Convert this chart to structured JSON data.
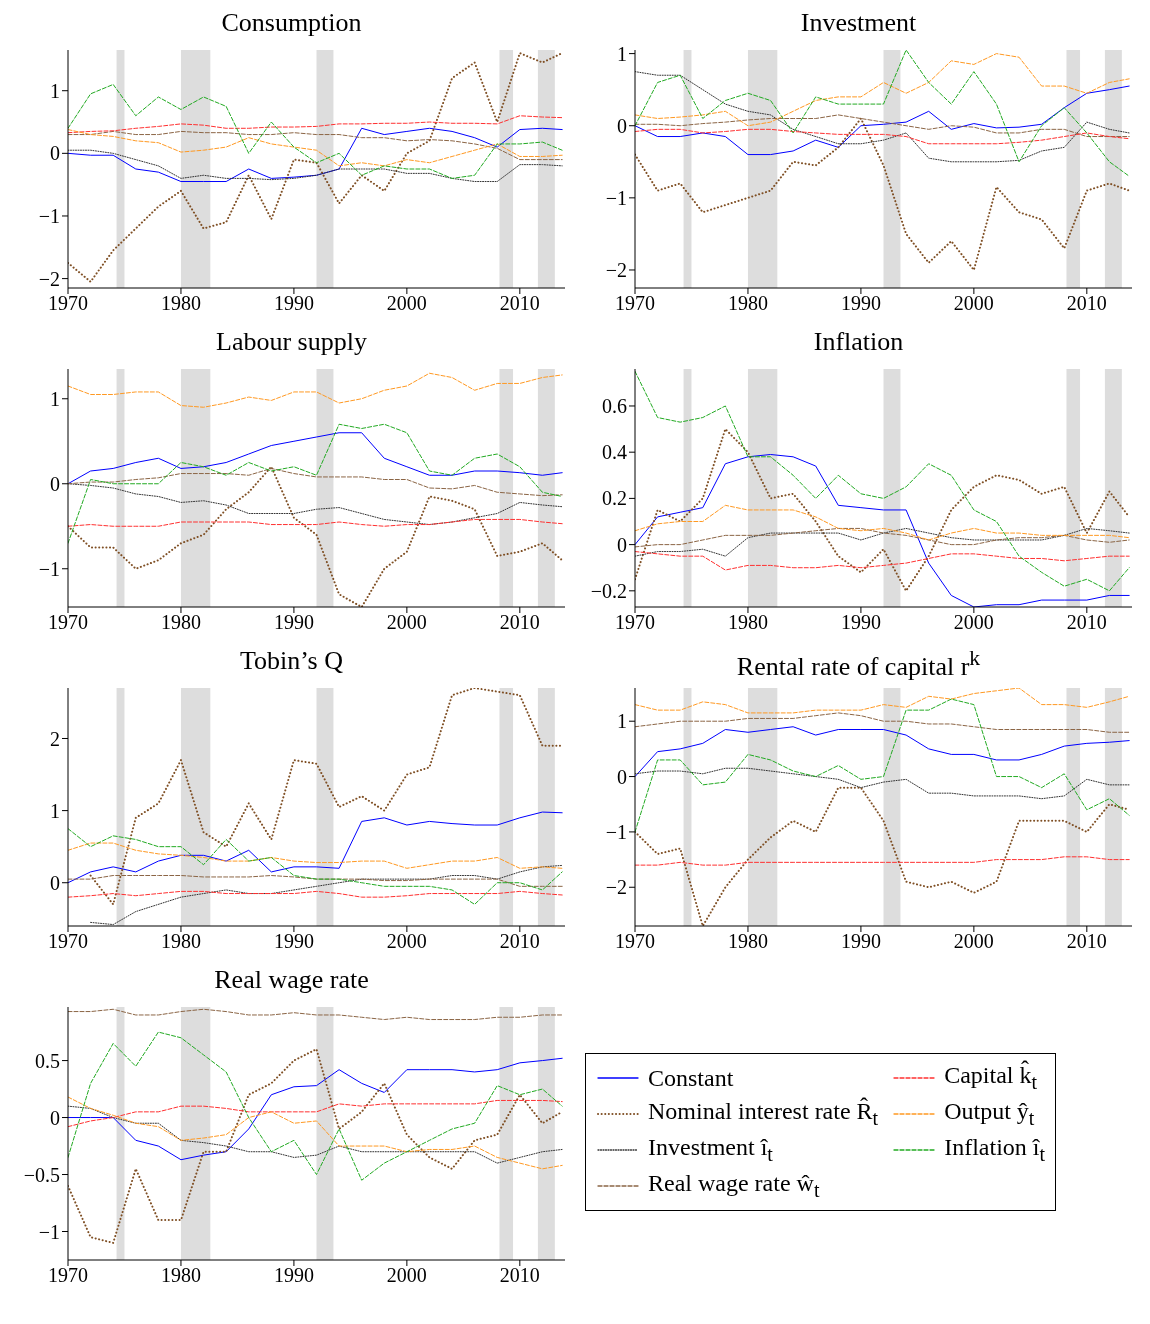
{
  "chart_data": [
    {
      "type": "line",
      "title": "Consumption",
      "x": [
        1970,
        1972,
        1974,
        1976,
        1978,
        1980,
        1982,
        1984,
        1986,
        1988,
        1990,
        1992,
        1994,
        1996,
        1998,
        2000,
        2002,
        2004,
        2006,
        2008,
        2010,
        2012,
        2013.75
      ],
      "xlim": [
        1970,
        2014
      ],
      "xticks": [
        1970,
        1980,
        1990,
        2000,
        2010
      ],
      "ylim": [
        -2.15,
        1.65
      ],
      "yticks": [
        -2,
        -1,
        0,
        1
      ],
      "bands": [
        {
          "axis": "x",
          "from": 1974.3,
          "to": 1975,
          "color": "#dddddd"
        },
        {
          "axis": "x",
          "from": 1980,
          "to": 1982.6,
          "color": "#dddddd"
        },
        {
          "axis": "x",
          "from": 1992,
          "to": 1993.5,
          "color": "#dddddd"
        },
        {
          "axis": "x",
          "from": 2008.2,
          "to": 2009.4,
          "color": "#dddddd"
        },
        {
          "axis": "x",
          "from": 2011.6,
          "to": 2013.1,
          "color": "#dddddd"
        }
      ],
      "series": [
        {
          "color": "#0000ff",
          "line_style": "solid",
          "values": [
            0,
            -0.03,
            -0.03,
            -0.25,
            -0.3,
            -0.45,
            -0.45,
            -0.45,
            -0.25,
            -0.4,
            -0.38,
            -0.35,
            -0.25,
            0.4,
            0.3,
            0.35,
            0.4,
            0.35,
            0.25,
            0.1,
            0.38,
            0.4,
            0.38
          ]
        },
        {
          "color": "#7f4f24",
          "line_style": "dotted",
          "values": [
            -1.75,
            -2.05,
            -1.55,
            -1.2,
            -0.85,
            -0.6,
            -1.2,
            -1.1,
            -0.35,
            -1.05,
            -0.1,
            -0.15,
            -0.8,
            -0.35,
            -0.6,
            0,
            0.2,
            1.2,
            1.45,
            0.5,
            1.6,
            1.45,
            1.6
          ]
        },
        {
          "color": "#333333",
          "line_style": "dotted",
          "values": [
            0.05,
            0.05,
            0,
            -0.1,
            -0.2,
            -0.4,
            -0.35,
            -0.4,
            -0.4,
            -0.42,
            -0.4,
            -0.35,
            -0.25,
            -0.25,
            -0.25,
            -0.32,
            -0.32,
            -0.4,
            -0.45,
            -0.45,
            -0.18,
            -0.18,
            -0.2
          ]
        },
        {
          "color": "#8b6545",
          "line_style": "dashed",
          "values": [
            0.3,
            0.3,
            0.35,
            0.3,
            0.3,
            0.35,
            0.33,
            0.33,
            0.3,
            0.3,
            0.33,
            0.3,
            0.3,
            0.25,
            0.25,
            0.2,
            0.22,
            0.2,
            0.15,
            0.08,
            -0.1,
            -0.1,
            -0.1
          ]
        },
        {
          "color": "#ff3030",
          "line_style": "dashed",
          "values": [
            0.33,
            0.35,
            0.36,
            0.4,
            0.43,
            0.47,
            0.45,
            0.4,
            0.4,
            0.42,
            0.42,
            0.43,
            0.47,
            0.47,
            0.48,
            0.48,
            0.5,
            0.48,
            0.48,
            0.47,
            0.6,
            0.58,
            0.57
          ]
        },
        {
          "color": "#ff9922",
          "line_style": "dashed",
          "values": [
            0.38,
            0.3,
            0.27,
            0.2,
            0.17,
            0.02,
            0.05,
            0.1,
            0.25,
            0.15,
            0.1,
            0.05,
            -0.2,
            -0.15,
            -0.2,
            -0.1,
            -0.15,
            -0.05,
            0.05,
            0.15,
            -0.05,
            -0.05,
            -0.03
          ]
        },
        {
          "color": "#22aa22",
          "line_style": "dashed",
          "values": [
            0.4,
            0.95,
            1.1,
            0.6,
            0.9,
            0.7,
            0.9,
            0.75,
            0,
            0.5,
            0.1,
            -0.15,
            0,
            -0.35,
            -0.2,
            -0.25,
            -0.25,
            -0.4,
            -0.35,
            0.15,
            0.15,
            0.18,
            0.05
          ]
        }
      ]
    },
    {
      "type": "line",
      "title": "Investment",
      "x": [
        1970,
        1972,
        1974,
        1976,
        1978,
        1980,
        1982,
        1984,
        1986,
        1988,
        1990,
        1992,
        1994,
        1996,
        1998,
        2000,
        2002,
        2004,
        2006,
        2008,
        2010,
        2012,
        2013.75
      ],
      "xlim": [
        1970,
        2014
      ],
      "xticks": [
        1970,
        1980,
        1990,
        2000,
        2010
      ],
      "ylim": [
        -2.25,
        1.05
      ],
      "yticks": [
        -2,
        -1,
        0,
        1
      ],
      "bands": [
        {
          "axis": "x",
          "from": 1974.3,
          "to": 1975,
          "color": "#dddddd"
        },
        {
          "axis": "x",
          "from": 1980,
          "to": 1982.6,
          "color": "#dddddd"
        },
        {
          "axis": "x",
          "from": 1992,
          "to": 1993.5,
          "color": "#dddddd"
        },
        {
          "axis": "x",
          "from": 2008.2,
          "to": 2009.4,
          "color": "#dddddd"
        },
        {
          "axis": "x",
          "from": 2011.6,
          "to": 2013.1,
          "color": "#dddddd"
        }
      ],
      "series": [
        {
          "color": "#0000ff",
          "line_style": "solid",
          "values": [
            0,
            -0.15,
            -0.15,
            -0.1,
            -0.15,
            -0.4,
            -0.4,
            -0.35,
            -0.2,
            -0.3,
            0,
            0.02,
            0.05,
            0.2,
            -0.05,
            0.03,
            -0.03,
            -0.02,
            0.02,
            0.25,
            0.45,
            0.5,
            0.55
          ]
        },
        {
          "color": "#7f4f24",
          "line_style": "dotted",
          "values": [
            -0.4,
            -0.9,
            -0.8,
            -1.2,
            -1.1,
            -1,
            -0.9,
            -0.5,
            -0.55,
            -0.3,
            0.1,
            -0.55,
            -1.5,
            -1.9,
            -1.6,
            -2,
            -0.85,
            -1.2,
            -1.3,
            -1.7,
            -0.9,
            -0.8,
            -0.9
          ]
        },
        {
          "color": "#333333",
          "line_style": "dotted",
          "values": [
            0.75,
            0.7,
            0.7,
            0.5,
            0.3,
            0.2,
            0.15,
            -0.05,
            -0.15,
            -0.25,
            -0.25,
            -0.2,
            -0.1,
            -0.45,
            -0.5,
            -0.5,
            -0.5,
            -0.48,
            -0.35,
            -0.3,
            0.05,
            -0.05,
            -0.1
          ]
        },
        {
          "color": "#8b6545",
          "line_style": "dashed",
          "values": [
            0.02,
            0.02,
            0,
            0.03,
            0.05,
            0.08,
            0.1,
            0.1,
            0.1,
            0.15,
            0.1,
            0.05,
            0,
            -0.05,
            0,
            -0.02,
            -0.1,
            -0.1,
            -0.05,
            -0.05,
            -0.15,
            -0.15,
            -0.15
          ]
        },
        {
          "color": "#ff3030",
          "line_style": "dashed",
          "values": [
            -0.08,
            -0.05,
            -0.05,
            -0.1,
            -0.08,
            -0.05,
            -0.05,
            -0.08,
            -0.1,
            -0.12,
            -0.12,
            -0.12,
            -0.15,
            -0.25,
            -0.25,
            -0.25,
            -0.25,
            -0.23,
            -0.2,
            -0.15,
            -0.1,
            -0.15,
            -0.18
          ]
        },
        {
          "color": "#ff9922",
          "line_style": "dashed",
          "values": [
            0.15,
            0.1,
            0.12,
            0.15,
            0.2,
            0,
            0.05,
            0.2,
            0.35,
            0.4,
            0.4,
            0.6,
            0.45,
            0.6,
            0.9,
            0.85,
            1,
            0.95,
            0.55,
            0.55,
            0.45,
            0.6,
            0.65
          ]
        },
        {
          "color": "#22aa22",
          "line_style": "dashed",
          "values": [
            0,
            0.6,
            0.7,
            0.1,
            0.35,
            0.45,
            0.35,
            -0.1,
            0.4,
            0.3,
            0.3,
            0.3,
            1.05,
            0.6,
            0.3,
            0.75,
            0.3,
            -0.5,
            0,
            0.25,
            -0.1,
            -0.5,
            -0.7
          ]
        }
      ]
    },
    {
      "type": "line",
      "title": "Labour supply",
      "x": [
        1970,
        1972,
        1974,
        1976,
        1978,
        1980,
        1982,
        1984,
        1986,
        1988,
        1990,
        1992,
        1994,
        1996,
        1998,
        2000,
        2002,
        2004,
        2006,
        2008,
        2010,
        2012,
        2013.75
      ],
      "xlim": [
        1970,
        2014
      ],
      "xticks": [
        1970,
        1980,
        1990,
        2000,
        2010
      ],
      "ylim": [
        -1.45,
        1.35
      ],
      "yticks": [
        -1,
        0,
        1
      ],
      "bands": [
        {
          "axis": "x",
          "from": 1974.3,
          "to": 1975,
          "color": "#dddddd"
        },
        {
          "axis": "x",
          "from": 1980,
          "to": 1982.6,
          "color": "#dddddd"
        },
        {
          "axis": "x",
          "from": 1992,
          "to": 1993.5,
          "color": "#dddddd"
        },
        {
          "axis": "x",
          "from": 2008.2,
          "to": 2009.4,
          "color": "#dddddd"
        },
        {
          "axis": "x",
          "from": 2011.6,
          "to": 2013.1,
          "color": "#dddddd"
        }
      ],
      "series": [
        {
          "color": "#0000ff",
          "line_style": "solid",
          "values": [
            0,
            0.15,
            0.18,
            0.25,
            0.3,
            0.18,
            0.2,
            0.25,
            0.35,
            0.45,
            0.5,
            0.55,
            0.6,
            0.6,
            0.3,
            0.2,
            0.1,
            0.1,
            0.15,
            0.15,
            0.13,
            0.1,
            0.13
          ]
        },
        {
          "color": "#7f4f24",
          "line_style": "dotted",
          "values": [
            -0.5,
            -0.75,
            -0.75,
            -1,
            -0.9,
            -0.7,
            -0.6,
            -0.3,
            -0.1,
            0.2,
            -0.4,
            -0.6,
            -1.3,
            -1.45,
            -1,
            -0.8,
            -0.15,
            -0.2,
            -0.3,
            -0.85,
            -0.8,
            -0.7,
            -0.9
          ]
        },
        {
          "color": "#333333",
          "line_style": "dotted",
          "values": [
            0,
            -0.02,
            -0.05,
            -0.12,
            -0.15,
            -0.22,
            -0.2,
            -0.25,
            -0.35,
            -0.35,
            -0.35,
            -0.3,
            -0.28,
            -0.35,
            -0.42,
            -0.45,
            -0.48,
            -0.45,
            -0.4,
            -0.35,
            -0.22,
            -0.25,
            -0.27
          ]
        },
        {
          "color": "#8b6545",
          "line_style": "dashed",
          "values": [
            0,
            0.02,
            0.02,
            0.05,
            0.07,
            0.12,
            0.12,
            0.12,
            0.1,
            0.18,
            0.12,
            0.08,
            0.08,
            0.08,
            0.05,
            0.05,
            -0.05,
            -0.06,
            -0.02,
            -0.1,
            -0.12,
            -0.14,
            -0.13
          ]
        },
        {
          "color": "#ff3030",
          "line_style": "dashed",
          "values": [
            -0.5,
            -0.48,
            -0.5,
            -0.5,
            -0.5,
            -0.45,
            -0.45,
            -0.45,
            -0.45,
            -0.48,
            -0.48,
            -0.48,
            -0.45,
            -0.48,
            -0.5,
            -0.48,
            -0.48,
            -0.45,
            -0.42,
            -0.42,
            -0.42,
            -0.45,
            -0.47
          ]
        },
        {
          "color": "#ff9922",
          "line_style": "dashed",
          "values": [
            1.15,
            1.05,
            1.05,
            1.08,
            1.08,
            0.92,
            0.9,
            0.95,
            1.02,
            0.98,
            1.08,
            1.08,
            0.95,
            1,
            1.1,
            1.15,
            1.3,
            1.25,
            1.1,
            1.18,
            1.18,
            1.25,
            1.28
          ]
        },
        {
          "color": "#22aa22",
          "line_style": "dashed",
          "values": [
            -0.7,
            0.05,
            0,
            0,
            0,
            0.25,
            0.2,
            0.1,
            0.25,
            0.15,
            0.2,
            0.1,
            0.7,
            0.65,
            0.7,
            0.6,
            0.15,
            0.1,
            0.3,
            0.35,
            0.2,
            -0.1,
            -0.15
          ]
        }
      ]
    },
    {
      "type": "line",
      "title": "Inflation",
      "x": [
        1970,
        1972,
        1974,
        1976,
        1978,
        1980,
        1982,
        1984,
        1986,
        1988,
        1990,
        1992,
        1994,
        1996,
        1998,
        2000,
        2002,
        2004,
        2006,
        2008,
        2010,
        2012,
        2013.75
      ],
      "xlim": [
        1970,
        2014
      ],
      "xticks": [
        1970,
        1980,
        1990,
        2000,
        2010
      ],
      "ylim": [
        -0.27,
        0.76
      ],
      "yticks": [
        -0.2,
        0,
        0.2,
        0.4,
        0.6
      ],
      "bands": [
        {
          "axis": "x",
          "from": 1974.3,
          "to": 1975,
          "color": "#dddddd"
        },
        {
          "axis": "x",
          "from": 1980,
          "to": 1982.6,
          "color": "#dddddd"
        },
        {
          "axis": "x",
          "from": 1992,
          "to": 1993.5,
          "color": "#dddddd"
        },
        {
          "axis": "x",
          "from": 2008.2,
          "to": 2009.4,
          "color": "#dddddd"
        },
        {
          "axis": "x",
          "from": 2011.6,
          "to": 2013.1,
          "color": "#dddddd"
        }
      ],
      "series": [
        {
          "color": "#0000ff",
          "line_style": "solid",
          "values": [
            0,
            0.12,
            0.14,
            0.16,
            0.35,
            0.38,
            0.39,
            0.38,
            0.34,
            0.17,
            0.16,
            0.15,
            0.15,
            -0.08,
            -0.22,
            -0.27,
            -0.26,
            -0.26,
            -0.24,
            -0.24,
            -0.24,
            -0.22,
            -0.22
          ]
        },
        {
          "color": "#7f4f24",
          "line_style": "dotted",
          "values": [
            -0.15,
            0.15,
            0.1,
            0.2,
            0.5,
            0.4,
            0.2,
            0.22,
            0.1,
            -0.05,
            -0.12,
            -0.02,
            -0.2,
            -0.05,
            0.15,
            0.25,
            0.3,
            0.28,
            0.22,
            0.25,
            0.05,
            0.23,
            0.12
          ]
        },
        {
          "color": "#333333",
          "line_style": "dotted",
          "values": [
            -0.05,
            -0.03,
            -0.03,
            -0.02,
            -0.05,
            0.03,
            0.05,
            0.05,
            0.05,
            0.05,
            0.02,
            0.05,
            0.07,
            0.05,
            0.03,
            0.02,
            0.02,
            0.02,
            0.02,
            0.04,
            0.07,
            0.06,
            0.05
          ]
        },
        {
          "color": "#8b6545",
          "line_style": "dashed",
          "values": [
            -0.01,
            0,
            0,
            0.02,
            0.04,
            0.04,
            0.04,
            0.05,
            0.06,
            0.07,
            0.07,
            0.05,
            0.04,
            0.02,
            0,
            0,
            0.02,
            0.03,
            0.03,
            0.04,
            0.02,
            0.01,
            0.02
          ]
        },
        {
          "color": "#ff3030",
          "line_style": "dashed",
          "values": [
            -0.03,
            -0.04,
            -0.05,
            -0.05,
            -0.11,
            -0.09,
            -0.09,
            -0.1,
            -0.1,
            -0.09,
            -0.1,
            -0.09,
            -0.08,
            -0.06,
            -0.04,
            -0.04,
            -0.05,
            -0.06,
            -0.06,
            -0.07,
            -0.06,
            -0.05,
            -0.05
          ]
        },
        {
          "color": "#ff9922",
          "line_style": "dashed",
          "values": [
            0.06,
            0.09,
            0.1,
            0.1,
            0.17,
            0.15,
            0.15,
            0.15,
            0.12,
            0.07,
            0.06,
            0.07,
            0.05,
            0.02,
            0.05,
            0.07,
            0.05,
            0.05,
            0.04,
            0.04,
            0.04,
            0.04,
            0.03
          ]
        },
        {
          "color": "#22aa22",
          "line_style": "dashed",
          "values": [
            0.75,
            0.55,
            0.53,
            0.55,
            0.6,
            0.38,
            0.38,
            0.3,
            0.2,
            0.3,
            0.22,
            0.2,
            0.25,
            0.35,
            0.3,
            0.15,
            0.1,
            -0.05,
            -0.12,
            -0.18,
            -0.15,
            -0.2,
            -0.1
          ]
        }
      ]
    },
    {
      "type": "line",
      "title": "Tobin’s Q",
      "x": [
        1970,
        1972,
        1974,
        1976,
        1978,
        1980,
        1982,
        1984,
        1986,
        1988,
        1990,
        1992,
        1994,
        1996,
        1998,
        2000,
        2002,
        2004,
        2006,
        2008,
        2010,
        2012,
        2013.75
      ],
      "xlim": [
        1970,
        2014
      ],
      "xticks": [
        1970,
        1980,
        1990,
        2000,
        2010
      ],
      "ylim": [
        -0.6,
        2.7
      ],
      "yticks": [
        0,
        1,
        2
      ],
      "bands": [
        {
          "axis": "x",
          "from": 1974.3,
          "to": 1975,
          "color": "#dddddd"
        },
        {
          "axis": "x",
          "from": 1980,
          "to": 1982.6,
          "color": "#dddddd"
        },
        {
          "axis": "x",
          "from": 1992,
          "to": 1993.5,
          "color": "#dddddd"
        },
        {
          "axis": "x",
          "from": 2008.2,
          "to": 2009.4,
          "color": "#dddddd"
        },
        {
          "axis": "x",
          "from": 2011.6,
          "to": 2013.1,
          "color": "#dddddd"
        }
      ],
      "series": [
        {
          "color": "#0000ff",
          "line_style": "solid",
          "values": [
            0,
            0.15,
            0.22,
            0.15,
            0.3,
            0.38,
            0.38,
            0.3,
            0.45,
            0.15,
            0.22,
            0.22,
            0.2,
            0.85,
            0.9,
            0.8,
            0.85,
            0.82,
            0.8,
            0.8,
            0.9,
            0.98,
            0.97
          ]
        },
        {
          "color": "#7f4f24",
          "line_style": "dotted",
          "values": [
            null,
            0.1,
            -0.3,
            0.9,
            1.1,
            1.7,
            0.7,
            0.5,
            1.1,
            0.6,
            1.7,
            1.65,
            1.05,
            1.2,
            1,
            1.5,
            1.6,
            2.6,
            2.7,
            2.65,
            2.6,
            1.9,
            1.9
          ]
        },
        {
          "color": "#333333",
          "line_style": "dotted",
          "values": [
            null,
            -0.55,
            -0.58,
            -0.4,
            -0.3,
            -0.2,
            -0.15,
            -0.1,
            -0.15,
            -0.15,
            -0.1,
            -0.05,
            0,
            0.05,
            0.05,
            0.05,
            0.05,
            0.1,
            0.1,
            0.05,
            0.15,
            0.22,
            0.24
          ]
        },
        {
          "color": "#8b6545",
          "line_style": "dashed",
          "values": [
            0.05,
            0.05,
            0.1,
            0.1,
            0.1,
            0.1,
            0.08,
            0.08,
            0.08,
            0.1,
            0.08,
            0.05,
            0.05,
            0.05,
            0.03,
            0.03,
            0.05,
            0.05,
            0.05,
            0.05,
            -0.05,
            -0.05,
            -0.05
          ]
        },
        {
          "color": "#ff3030",
          "line_style": "dashed",
          "values": [
            -0.2,
            -0.18,
            -0.15,
            -0.18,
            -0.15,
            -0.12,
            -0.12,
            -0.15,
            -0.15,
            -0.15,
            -0.15,
            -0.12,
            -0.15,
            -0.2,
            -0.2,
            -0.18,
            -0.15,
            -0.15,
            -0.15,
            -0.15,
            -0.12,
            -0.15,
            -0.17
          ]
        },
        {
          "color": "#ff9922",
          "line_style": "dashed",
          "values": [
            0.45,
            0.55,
            0.55,
            0.45,
            0.4,
            0.38,
            0.35,
            0.3,
            0.3,
            0.35,
            0.3,
            0.28,
            0.28,
            0.3,
            0.3,
            0.2,
            0.25,
            0.3,
            0.3,
            0.35,
            0.2,
            0.22,
            0.2
          ]
        },
        {
          "color": "#22aa22",
          "line_style": "dashed",
          "values": [
            0.75,
            0.5,
            0.65,
            0.6,
            0.5,
            0.5,
            0.25,
            0.6,
            0.3,
            0.35,
            0.1,
            0.05,
            0.05,
            0,
            -0.05,
            -0.05,
            -0.05,
            -0.1,
            -0.3,
            0,
            0,
            -0.1,
            0.15
          ]
        }
      ]
    },
    {
      "type": "line",
      "title": "Rental rate of capital r$^{k}$",
      "x": [
        1970,
        1972,
        1974,
        1976,
        1978,
        1980,
        1982,
        1984,
        1986,
        1988,
        1990,
        1992,
        1994,
        1996,
        1998,
        2000,
        2002,
        2004,
        2006,
        2008,
        2010,
        2012,
        2013.75
      ],
      "xlim": [
        1970,
        2014
      ],
      "xticks": [
        1970,
        1980,
        1990,
        2000,
        2010
      ],
      "ylim": [
        -2.7,
        1.6
      ],
      "yticks": [
        -2,
        -1,
        0,
        1
      ],
      "bands": [
        {
          "axis": "x",
          "from": 1974.3,
          "to": 1975,
          "color": "#dddddd"
        },
        {
          "axis": "x",
          "from": 1980,
          "to": 1982.6,
          "color": "#dddddd"
        },
        {
          "axis": "x",
          "from": 1992,
          "to": 1993.5,
          "color": "#dddddd"
        },
        {
          "axis": "x",
          "from": 2008.2,
          "to": 2009.4,
          "color": "#dddddd"
        },
        {
          "axis": "x",
          "from": 2011.6,
          "to": 2013.1,
          "color": "#dddddd"
        }
      ],
      "series": [
        {
          "color": "#0000ff",
          "line_style": "solid",
          "values": [
            0,
            0.45,
            0.5,
            0.6,
            0.85,
            0.8,
            0.85,
            0.9,
            0.75,
            0.85,
            0.85,
            0.85,
            0.75,
            0.5,
            0.4,
            0.4,
            0.3,
            0.3,
            0.4,
            0.55,
            0.6,
            0.62,
            0.65
          ]
        },
        {
          "color": "#7f4f24",
          "line_style": "dotted",
          "values": [
            -1,
            -1.4,
            -1.3,
            -2.7,
            -2,
            -1.5,
            -1.1,
            -0.8,
            -1,
            -0.2,
            -0.2,
            -0.8,
            -1.9,
            -2,
            -1.9,
            -2.1,
            -1.9,
            -0.8,
            -0.8,
            -0.8,
            -1,
            -0.5,
            -0.6
          ]
        },
        {
          "color": "#333333",
          "line_style": "dotted",
          "values": [
            0.05,
            0.1,
            0.1,
            0.05,
            0.15,
            0.15,
            0.1,
            0.05,
            0,
            -0.05,
            -0.2,
            -0.1,
            -0.05,
            -0.3,
            -0.3,
            -0.35,
            -0.35,
            -0.35,
            -0.4,
            -0.35,
            -0.05,
            -0.15,
            -0.15
          ]
        },
        {
          "color": "#8b6545",
          "line_style": "dashed",
          "values": [
            0.9,
            0.95,
            1,
            1,
            1,
            1.05,
            1.05,
            1.05,
            1.1,
            1.15,
            1.1,
            1,
            1,
            0.95,
            0.95,
            0.9,
            0.85,
            0.85,
            0.85,
            0.85,
            0.85,
            0.8,
            0.8
          ]
        },
        {
          "color": "#ff3030",
          "line_style": "dashed",
          "values": [
            -1.6,
            -1.6,
            -1.55,
            -1.6,
            -1.6,
            -1.55,
            -1.55,
            -1.55,
            -1.55,
            -1.55,
            -1.55,
            -1.55,
            -1.55,
            -1.55,
            -1.55,
            -1.55,
            -1.5,
            -1.5,
            -1.5,
            -1.45,
            -1.45,
            -1.5,
            -1.5
          ]
        },
        {
          "color": "#ff9922",
          "line_style": "dashed",
          "values": [
            1.3,
            1.2,
            1.2,
            1.35,
            1.3,
            1.15,
            1.15,
            1.15,
            1.2,
            1.2,
            1.2,
            1.3,
            1.25,
            1.45,
            1.4,
            1.5,
            1.55,
            1.6,
            1.3,
            1.3,
            1.25,
            1.35,
            1.45
          ]
        },
        {
          "color": "#22aa22",
          "line_style": "dashed",
          "values": [
            -1,
            0.3,
            0.3,
            -0.15,
            -0.1,
            0.4,
            0.3,
            0.1,
            0,
            0.2,
            -0.05,
            0,
            1.2,
            1.2,
            1.4,
            1.3,
            0,
            0,
            -0.2,
            0.05,
            -0.6,
            -0.4,
            -0.7
          ]
        }
      ]
    },
    {
      "type": "line",
      "title": "Real wage rate",
      "x": [
        1970,
        1972,
        1974,
        1976,
        1978,
        1980,
        1982,
        1984,
        1986,
        1988,
        1990,
        1992,
        1994,
        1996,
        1998,
        2000,
        2002,
        2004,
        2006,
        2008,
        2010,
        2012,
        2013.75
      ],
      "xlim": [
        1970,
        2014
      ],
      "xticks": [
        1970,
        1980,
        1990,
        2000,
        2010
      ],
      "ylim": [
        -1.25,
        0.97
      ],
      "yticks": [
        -1,
        -0.5,
        0,
        0.5
      ],
      "legend": "right",
      "bands": [
        {
          "axis": "x",
          "from": 1974.3,
          "to": 1975,
          "color": "#dddddd"
        },
        {
          "axis": "x",
          "from": 1980,
          "to": 1982.6,
          "color": "#dddddd"
        },
        {
          "axis": "x",
          "from": 1992,
          "to": 1993.5,
          "color": "#dddddd"
        },
        {
          "axis": "x",
          "from": 2008.2,
          "to": 2009.4,
          "color": "#dddddd"
        },
        {
          "axis": "x",
          "from": 2011.6,
          "to": 2013.1,
          "color": "#dddddd"
        }
      ],
      "series": [
        {
          "name": "Constant",
          "color": "#0000ff",
          "line_style": "solid",
          "values": [
            0,
            0,
            0,
            -0.2,
            -0.25,
            -0.37,
            -0.33,
            -0.3,
            -0.1,
            0.2,
            0.27,
            0.28,
            0.42,
            0.3,
            0.22,
            0.42,
            0.42,
            0.42,
            0.4,
            0.42,
            0.48,
            0.5,
            0.52
          ]
        },
        {
          "name": "Nominal interest rate R̂$_{t}$",
          "color": "#7f4f24",
          "line_style": "dotted",
          "values": [
            -0.6,
            -1.05,
            -1.1,
            -0.45,
            -0.9,
            -0.9,
            -0.3,
            -0.3,
            0.2,
            0.3,
            0.5,
            0.6,
            -0.1,
            0.05,
            0.3,
            -0.15,
            -0.35,
            -0.45,
            -0.2,
            -0.15,
            0.2,
            -0.05,
            0.05
          ]
        },
        {
          "name": "Investment î$_{t}$",
          "color": "#333333",
          "line_style": "dotted",
          "values": [
            0.1,
            0.08,
            0,
            -0.05,
            -0.05,
            -0.2,
            -0.22,
            -0.25,
            -0.3,
            -0.3,
            -0.35,
            -0.33,
            -0.25,
            -0.3,
            -0.3,
            -0.3,
            -0.3,
            -0.3,
            -0.3,
            -0.4,
            -0.35,
            -0.3,
            -0.28
          ]
        },
        {
          "name": "Real wage rate ŵ$_{t}$",
          "color": "#8b6545",
          "line_style": "dashed",
          "values": [
            0.93,
            0.93,
            0.95,
            0.9,
            0.9,
            0.93,
            0.95,
            0.93,
            0.9,
            0.9,
            0.92,
            0.9,
            0.9,
            0.88,
            0.86,
            0.88,
            0.86,
            0.86,
            0.86,
            0.88,
            0.88,
            0.9,
            0.9
          ]
        },
        {
          "name": "Capital k̂$_{t}$",
          "color": "#ff3030",
          "line_style": "dashed",
          "values": [
            -0.08,
            -0.03,
            0,
            0.05,
            0.05,
            0.1,
            0.1,
            0.08,
            0.05,
            0.05,
            0.05,
            0.05,
            0.12,
            0.1,
            0.12,
            0.12,
            0.12,
            0.12,
            0.12,
            0.15,
            0.15,
            0.15,
            0.14
          ]
        },
        {
          "name": "Output ŷ$_{t}$",
          "color": "#ff9922",
          "line_style": "dashed",
          "values": [
            0.18,
            0.08,
            0.02,
            -0.05,
            -0.08,
            -0.2,
            -0.18,
            -0.15,
            0,
            0.05,
            -0.05,
            -0.03,
            -0.25,
            -0.25,
            -0.25,
            -0.3,
            -0.28,
            -0.28,
            -0.25,
            -0.35,
            -0.4,
            -0.45,
            -0.42
          ]
        },
        {
          "name": "Inflation î$_{t}$",
          "color": "#22aa22",
          "line_style": "dashed",
          "values": [
            -0.35,
            0.3,
            0.65,
            0.45,
            0.75,
            0.7,
            0.55,
            0.4,
            0,
            -0.3,
            -0.2,
            -0.5,
            -0.1,
            -0.55,
            -0.4,
            -0.3,
            -0.2,
            -0.1,
            -0.05,
            0.28,
            0.2,
            0.25,
            0.1
          ]
        }
      ]
    }
  ]
}
